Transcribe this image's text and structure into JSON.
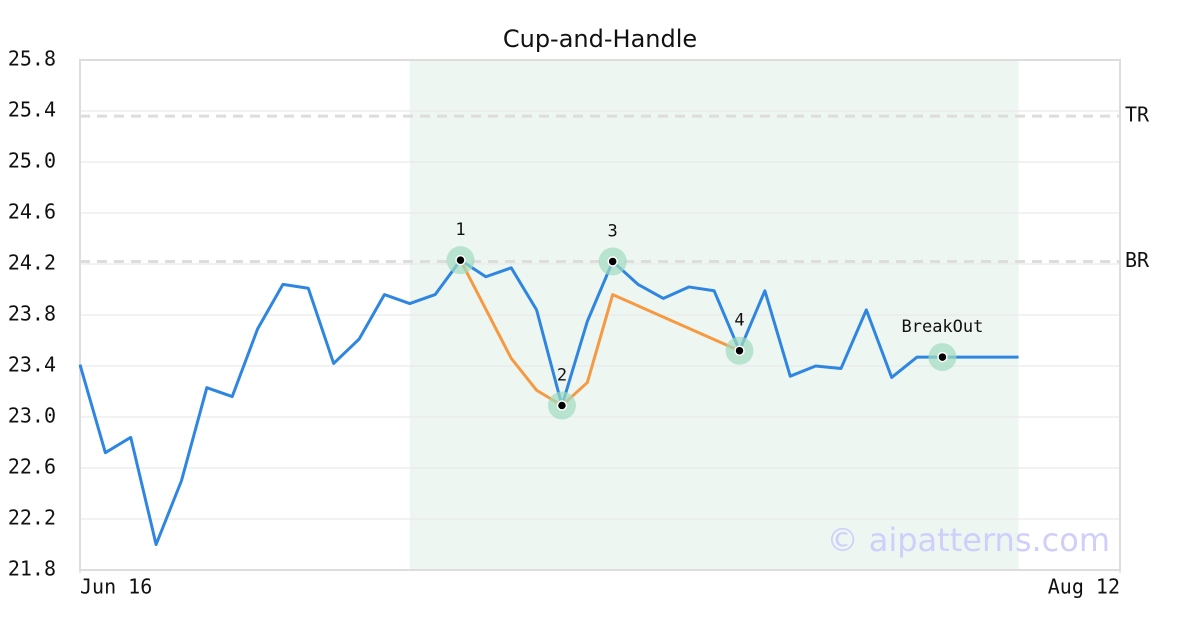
{
  "chart_data": {
    "type": "line",
    "title": "Cup-and-Handle",
    "xlim": [
      0,
      41
    ],
    "xticks": [
      {
        "value": 0,
        "label": "Jun 16"
      },
      {
        "value": 41,
        "label": "Aug 12"
      }
    ],
    "ylim": [
      21.8,
      25.8
    ],
    "yticks": [
      21.8,
      22.2,
      22.6,
      {
        "value": 23,
        "label": "23.0"
      },
      23.4,
      23.8,
      24.2,
      24.6,
      {
        "value": 25,
        "label": "25.0"
      },
      25.4,
      25.8
    ],
    "grid": true,
    "highlight_range": [
      13,
      37
    ],
    "series": [
      {
        "color": "#2f86e0",
        "values": [
          23.41,
          22.72,
          22.84,
          22.0,
          22.5,
          23.23,
          23.16,
          23.69,
          24.04,
          24.01,
          23.42,
          23.61,
          23.96,
          23.89,
          23.96,
          24.23,
          24.1,
          24.17,
          23.84,
          23.09,
          23.75,
          24.22,
          24.04,
          23.93,
          24.02,
          23.99,
          23.52,
          23.99,
          23.32,
          23.4,
          23.38,
          23.84,
          23.31,
          23.47,
          23.47,
          23.47,
          23.47,
          23.47
        ]
      },
      {
        "color": "#f59a42",
        "x": [
          15,
          17,
          18,
          19,
          20,
          21,
          26
        ],
        "values": [
          24.23,
          23.46,
          23.21,
          23.09,
          23.27,
          23.96,
          23.52
        ]
      }
    ],
    "levels": [
      {
        "label": "TR",
        "value": 25.36
      },
      {
        "label": "BR",
        "value": 24.22
      }
    ],
    "points": [
      {
        "label": "1",
        "x": 15,
        "value": 24.23
      },
      {
        "label": "2",
        "x": 19,
        "value": 23.09
      },
      {
        "label": "3",
        "x": 21,
        "value": 24.22
      },
      {
        "label": "4",
        "x": 26,
        "value": 23.52
      },
      {
        "label": "BreakOut",
        "x": 34,
        "value": 23.47
      }
    ],
    "watermark": "© aipatterns.com"
  }
}
